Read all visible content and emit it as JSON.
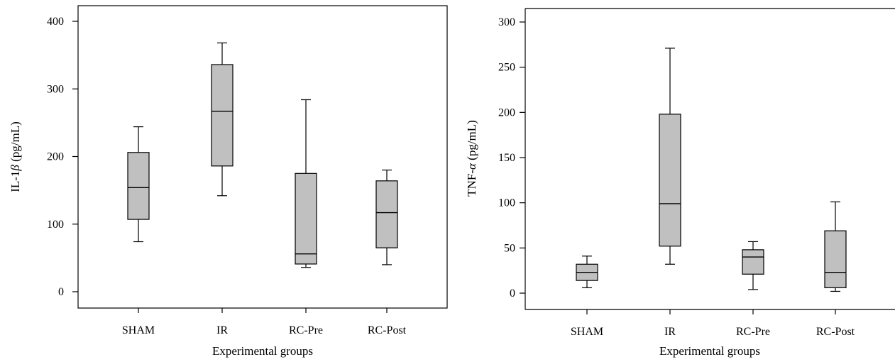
{
  "chart_data": [
    {
      "type": "boxplot",
      "xlabel": "Experimental groups",
      "ylabel_prefix": "IL-1",
      "ylabel_symbol": "β",
      "ylabel_suffix": " (pg/mL)",
      "ylim": [
        -22,
        410
      ],
      "yticks": [
        0,
        100,
        200,
        300,
        400
      ],
      "categories": [
        "SHAM",
        "IR",
        "RC-Pre",
        "RC-Post"
      ],
      "boxes": [
        {
          "min": 74,
          "q1": 107,
          "median": 154,
          "q3": 206,
          "max": 244
        },
        {
          "min": 142,
          "q1": 186,
          "median": 267,
          "q3": 336,
          "max": 368
        },
        {
          "min": 36,
          "q1": 41,
          "median": 56,
          "q3": 175,
          "max": 284
        },
        {
          "min": 40,
          "q1": 65,
          "median": 117,
          "q3": 164,
          "max": 180
        }
      ],
      "box_fill": "#c0c0c0"
    },
    {
      "type": "boxplot",
      "xlabel": "Experimental groups",
      "ylabel_prefix": "TNF-",
      "ylabel_symbol": "α",
      "ylabel_suffix": " (pg/mL)",
      "ylim": [
        -17,
        315
      ],
      "yticks": [
        0,
        50,
        100,
        150,
        200,
        250,
        300
      ],
      "categories": [
        "SHAM",
        "IR",
        "RC-Pre",
        "RC-Post"
      ],
      "boxes": [
        {
          "min": 6,
          "q1": 14,
          "median": 23,
          "q3": 32,
          "max": 41
        },
        {
          "min": 32,
          "q1": 52,
          "median": 99,
          "q3": 198,
          "max": 271
        },
        {
          "min": 4,
          "q1": 21,
          "median": 40,
          "q3": 48,
          "max": 57
        },
        {
          "min": 2,
          "q1": 6,
          "median": 23,
          "q3": 69,
          "max": 101
        }
      ],
      "box_fill": "#c0c0c0"
    }
  ]
}
